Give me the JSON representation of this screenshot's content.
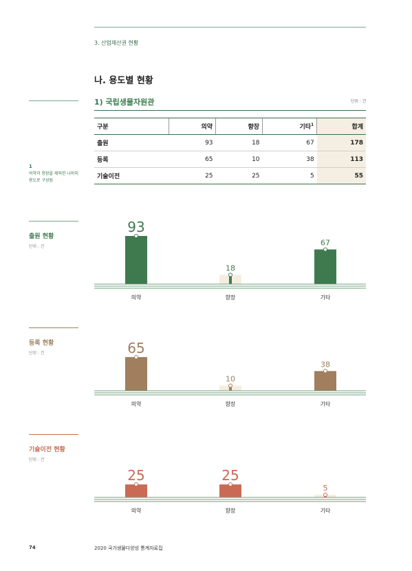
{
  "header": {
    "section": "3. 산업재산권 현황"
  },
  "heading": "나. 용도별 현황",
  "subheading": "1) 국립생물자원관",
  "unit": "단위 : 건",
  "note": {
    "num": "1",
    "text1": "의약과 향장을 제외한 나머지",
    "text2": "용도로 구성됨"
  },
  "table": {
    "headers": [
      "구분",
      "의약",
      "향장",
      "기타",
      "합계"
    ],
    "header_sup": "1",
    "rows": [
      [
        "출원",
        "93",
        "18",
        "67",
        "178"
      ],
      [
        "등록",
        "65",
        "10",
        "38",
        "113"
      ],
      [
        "기술이전",
        "25",
        "25",
        "5",
        "55"
      ]
    ]
  },
  "chart_data": [
    {
      "type": "bar",
      "title": "출원 현황",
      "unit": "단위 : 건",
      "categories": [
        "의약",
        "향장",
        "기타"
      ],
      "values": [
        93,
        18,
        67
      ],
      "color": "#3f7a4f"
    },
    {
      "type": "bar",
      "title": "등록 현황",
      "unit": "단위 : 건",
      "categories": [
        "의약",
        "향장",
        "기타"
      ],
      "values": [
        65,
        10,
        38
      ],
      "color": "#a07e5e"
    },
    {
      "type": "bar",
      "title": "기술이전 현황",
      "unit": "단위 : 건",
      "categories": [
        "의약",
        "향장",
        "기타"
      ],
      "values": [
        25,
        25,
        5
      ],
      "color": "#c96a55"
    }
  ],
  "footer": {
    "page": "74",
    "title": "2020 국가생물다양성 통계자료집"
  }
}
